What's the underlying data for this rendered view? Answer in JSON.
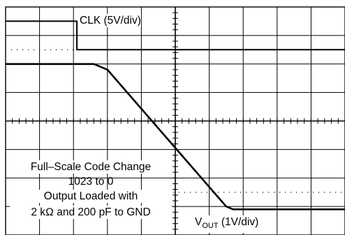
{
  "chart_data": {
    "type": "line",
    "grid": true,
    "divisions": {
      "x": 10,
      "y": 8
    },
    "series": [
      {
        "name": "CLK",
        "scale_label": "CLK (5V/div)",
        "x_div": [
          0,
          2.1,
          2.1,
          10
        ],
        "y_div": [
          7.5,
          7.5,
          6.5,
          6.5
        ]
      },
      {
        "name": "V_OUT",
        "scale_label": "(1V/div)",
        "x_div": [
          0,
          2.6,
          3.0,
          6.5,
          6.7,
          10
        ],
        "y_div": [
          6.0,
          6.0,
          5.8,
          1.0,
          0.9,
          0.9
        ]
      }
    ],
    "annotation": {
      "lines": [
        "Full–Scale Code Change",
        "1023 to 0",
        "Output Loaded with",
        "2 kΩ and 200 pF to GND"
      ]
    }
  },
  "labels": {
    "clk": "CLK (5V/div)",
    "vout_main": "V",
    "vout_sub": "OUT",
    "vout_scale": " (1V/div)"
  }
}
